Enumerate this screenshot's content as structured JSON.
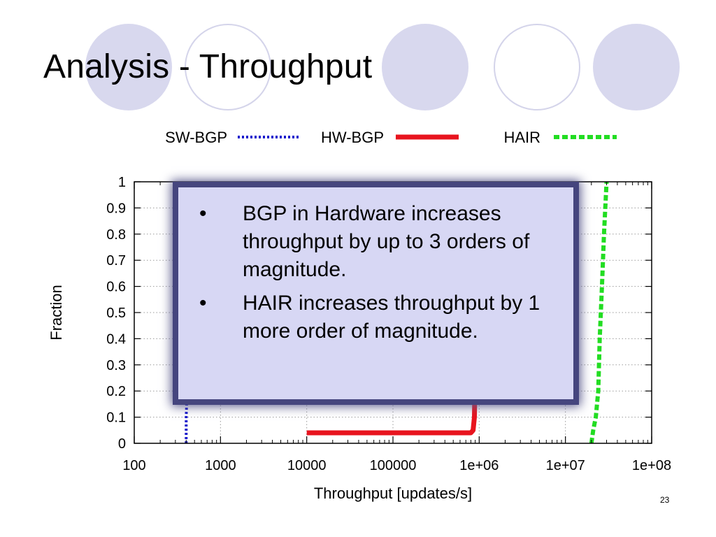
{
  "slide": {
    "title": "Analysis - Throughput",
    "number": "23",
    "decor_colors": {
      "filled": "#d8d8ee",
      "ring": "#d4d4ea"
    }
  },
  "chart_data": {
    "type": "line",
    "xlabel": "Throughput [updates/s]",
    "ylabel": "Fraction",
    "x_scale": "log",
    "xlim": [
      100,
      100000000
    ],
    "ylim": [
      0,
      1
    ],
    "x_ticks": [
      100,
      1000,
      10000,
      100000,
      1000000,
      10000000,
      100000000
    ],
    "x_tick_labels": [
      "100",
      "1000",
      "10000",
      "100000",
      "1e+06",
      "1e+07",
      "1e+08"
    ],
    "y_ticks": [
      0,
      0.1,
      0.2,
      0.3,
      0.4,
      0.5,
      0.6,
      0.7,
      0.8,
      0.9,
      1
    ],
    "y_tick_labels": [
      "0",
      "0.1",
      "0.2",
      "0.3",
      "0.4",
      "0.5",
      "0.6",
      "0.7",
      "0.8",
      "0.9",
      "1"
    ],
    "grid": true,
    "legend_position": "top",
    "series": [
      {
        "name": "SW-BGP",
        "color": "#1a1acc",
        "style": "dotted",
        "points": [
          [
            400,
            0
          ],
          [
            400,
            0.1
          ],
          [
            410,
            0.2
          ],
          [
            415,
            0.4
          ],
          [
            420,
            0.6
          ],
          [
            430,
            0.8
          ],
          [
            440,
            1.0
          ]
        ]
      },
      {
        "name": "HW-BGP",
        "color": "#e8141e",
        "style": "solid",
        "points": [
          [
            10000,
            0.04
          ],
          [
            800000,
            0.04
          ],
          [
            850000,
            0.05
          ],
          [
            880000,
            0.1
          ],
          [
            900000,
            0.3
          ],
          [
            950000,
            0.6
          ],
          [
            1000000,
            0.85
          ],
          [
            1050000,
            1.0
          ]
        ]
      },
      {
        "name": "HAIR",
        "color": "#22dd22",
        "style": "dashed",
        "points": [
          [
            20000000,
            0
          ],
          [
            21000000,
            0.05
          ],
          [
            22500000,
            0.1
          ],
          [
            24000000,
            0.2
          ],
          [
            25000000,
            0.4
          ],
          [
            26500000,
            0.6
          ],
          [
            28000000,
            0.8
          ],
          [
            30000000,
            1.0
          ]
        ]
      }
    ]
  },
  "callout": {
    "bullet_symbol": "•",
    "items": [
      "BGP in Hardware increases throughput by up to 3 orders of magnitude.",
      "HAIR increases throughput by 1 more order of magnitude."
    ]
  }
}
